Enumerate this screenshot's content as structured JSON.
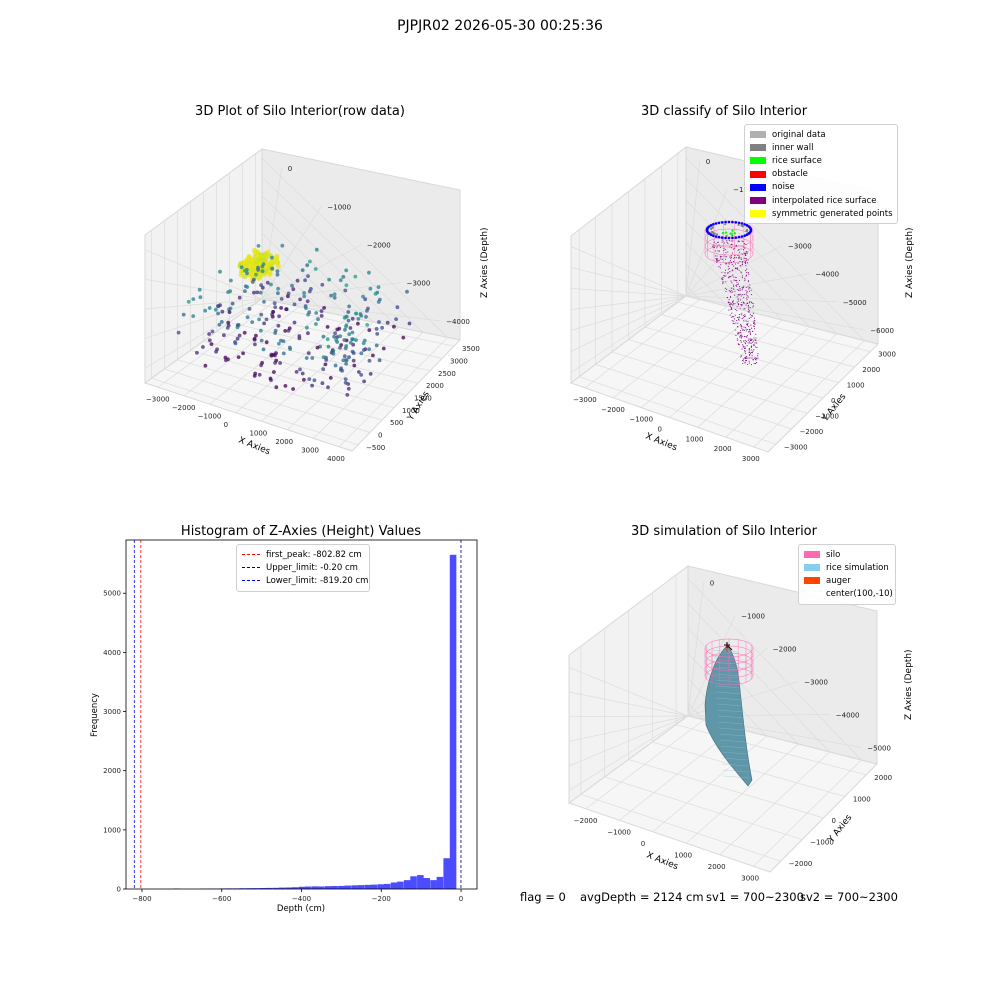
{
  "figure": {
    "suptitle": "PJPJR02 2026-05-30 00:25:36",
    "status": {
      "flag": "flag = 0",
      "avg_depth": "avgDepth = 2124 cm",
      "sv1": "sv1 = 700~2300",
      "sv2": "sv2 = 700~2300"
    }
  },
  "chart_data": [
    {
      "type": "scatter",
      "kind": "3d",
      "title": "3D Plot of Silo Interior(row data)",
      "xlabel": "X Axies",
      "ylabel": "Y Axies",
      "zlabel": "Z Axies (Depth)",
      "x_ticks": [
        "−3000",
        "−2000",
        "−1000",
        "0",
        "1000",
        "2000",
        "3000",
        "4000"
      ],
      "y_ticks": [
        "−500",
        "0",
        "500",
        "1000",
        "1500",
        "2000",
        "2500",
        "3000",
        "3500"
      ],
      "z_ticks": [
        "0",
        "−1000",
        "−2000",
        "−3000",
        "−4000"
      ],
      "xlim": [
        -3500,
        4500
      ],
      "ylim": [
        -700,
        3700
      ],
      "zlim": [
        -4500,
        0
      ],
      "colormap": "viridis (by depth)",
      "point_groups": [
        {
          "name": "",
          "x_range": [
            -1600,
            -700
          ],
          "y_range": [
            900,
            1700
          ],
          "z_range": [
            -1700,
            -1300
          ],
          "count": 140,
          "color": "#e5e419"
        },
        {
          "name": "",
          "x_range": [
            -2800,
            2800
          ],
          "y_range": [
            -300,
            3300
          ],
          "z_range": [
            -3900,
            -2000
          ],
          "count": 260,
          "color": "#3b528b"
        },
        {
          "name": "",
          "x_range": [
            2600,
            3800
          ],
          "y_range": [
            -200,
            1200
          ],
          "z_range": [
            -3400,
            -1800
          ],
          "count": 50,
          "color": "#21918c"
        }
      ]
    },
    {
      "type": "scatter",
      "kind": "3d",
      "title": "3D classify of Silo Interior",
      "xlabel": "X Axies",
      "ylabel": "Y Axies",
      "zlabel": "Z Axies (Depth)",
      "x_ticks": [
        "−3000",
        "−2000",
        "−1000",
        "0",
        "1000",
        "2000",
        "3000"
      ],
      "y_ticks": [
        "−3000",
        "−2000",
        "−1000",
        "0",
        "1000",
        "2000",
        "3000"
      ],
      "z_ticks": [
        "0",
        "−1000",
        "−2000",
        "−3000",
        "−4000",
        "−5000",
        "−6000"
      ],
      "legend": [
        {
          "label": "original data",
          "color": "#b0b0b0"
        },
        {
          "label": "inner wall",
          "color": "#808080"
        },
        {
          "label": "rice surface",
          "color": "#00ff00"
        },
        {
          "label": "obstacle",
          "color": "#ff0000"
        },
        {
          "label": "noise",
          "color": "#0000ff"
        },
        {
          "label": "interpolated rice surface",
          "color": "#800080"
        },
        {
          "label": "symmetric generated points",
          "color": "#ffff00"
        }
      ],
      "legend_position": "top-right"
    },
    {
      "type": "bar",
      "kind": "histogram",
      "title": "Histogram of Z-Axies (Height) Values",
      "xlabel": "Depth (cm)",
      "ylabel": "Frequency",
      "xlim": [
        -840,
        40
      ],
      "ylim": [
        0,
        5900
      ],
      "x_ticks": [
        -800,
        -600,
        -400,
        -200,
        0
      ],
      "y_ticks": [
        0,
        1000,
        2000,
        3000,
        4000,
        5000
      ],
      "bar_color": "#4b4bff",
      "bin_width": 16.5,
      "bins": [
        {
          "x": -713,
          "value": 8
        },
        {
          "x": -647,
          "value": 5
        },
        {
          "x": -630,
          "value": 7
        },
        {
          "x": -614,
          "value": 8
        },
        {
          "x": -597,
          "value": 10
        },
        {
          "x": -581,
          "value": 11
        },
        {
          "x": -564,
          "value": 11
        },
        {
          "x": -548,
          "value": 13
        },
        {
          "x": -531,
          "value": 14
        },
        {
          "x": -515,
          "value": 15
        },
        {
          "x": -498,
          "value": 17
        },
        {
          "x": -482,
          "value": 19
        },
        {
          "x": -465,
          "value": 20
        },
        {
          "x": -449,
          "value": 24
        },
        {
          "x": -432,
          "value": 26
        },
        {
          "x": -416,
          "value": 30
        },
        {
          "x": -399,
          "value": 38
        },
        {
          "x": -383,
          "value": 42
        },
        {
          "x": -366,
          "value": 45
        },
        {
          "x": -350,
          "value": 43
        },
        {
          "x": -333,
          "value": 48
        },
        {
          "x": -317,
          "value": 50
        },
        {
          "x": -300,
          "value": 52
        },
        {
          "x": -284,
          "value": 58
        },
        {
          "x": -267,
          "value": 62
        },
        {
          "x": -251,
          "value": 66
        },
        {
          "x": -234,
          "value": 70
        },
        {
          "x": -218,
          "value": 74
        },
        {
          "x": -201,
          "value": 80
        },
        {
          "x": -185,
          "value": 86
        },
        {
          "x": -168,
          "value": 110
        },
        {
          "x": -152,
          "value": 125
        },
        {
          "x": -135,
          "value": 150
        },
        {
          "x": -119,
          "value": 215
        },
        {
          "x": -102,
          "value": 235
        },
        {
          "x": -86,
          "value": 185
        },
        {
          "x": -69,
          "value": 150
        },
        {
          "x": -53,
          "value": 205
        },
        {
          "x": -36,
          "value": 520
        },
        {
          "x": -20,
          "value": 5650
        }
      ],
      "vlines": [
        {
          "label": "first_peak: -802.82 cm",
          "x": -802.82,
          "color": "#ff0000"
        },
        {
          "label": "Upper_limit: -0.20 cm",
          "x": -0.2,
          "color": "#000080"
        },
        {
          "label": "Lower_limit: -819.20 cm",
          "x": -819.2,
          "color": "#0000ff"
        }
      ],
      "legend_position": "top-center"
    },
    {
      "type": "area",
      "kind": "3d-surface",
      "title": "3D simulation of Silo Interior",
      "xlabel": "X Axies",
      "ylabel": "Y Axies",
      "zlabel": "Z Axies (Depth)",
      "x_ticks": [
        "−2000",
        "−1000",
        "0",
        "1000",
        "2000",
        "3000"
      ],
      "y_ticks": [
        "−2000",
        "−1000",
        "0",
        "1000",
        "2000"
      ],
      "z_ticks": [
        "0",
        "−1000",
        "−2000",
        "−3000",
        "−4000",
        "−5000"
      ],
      "legend": [
        {
          "label": "silo",
          "color": "#ff69b4"
        },
        {
          "label": "rice simulation",
          "color": "#87ceeb"
        },
        {
          "label": "auger",
          "color": "#ff4500"
        },
        {
          "label": "center(100,-10)",
          "color": ""
        }
      ],
      "legend_position": "top-right"
    }
  ]
}
